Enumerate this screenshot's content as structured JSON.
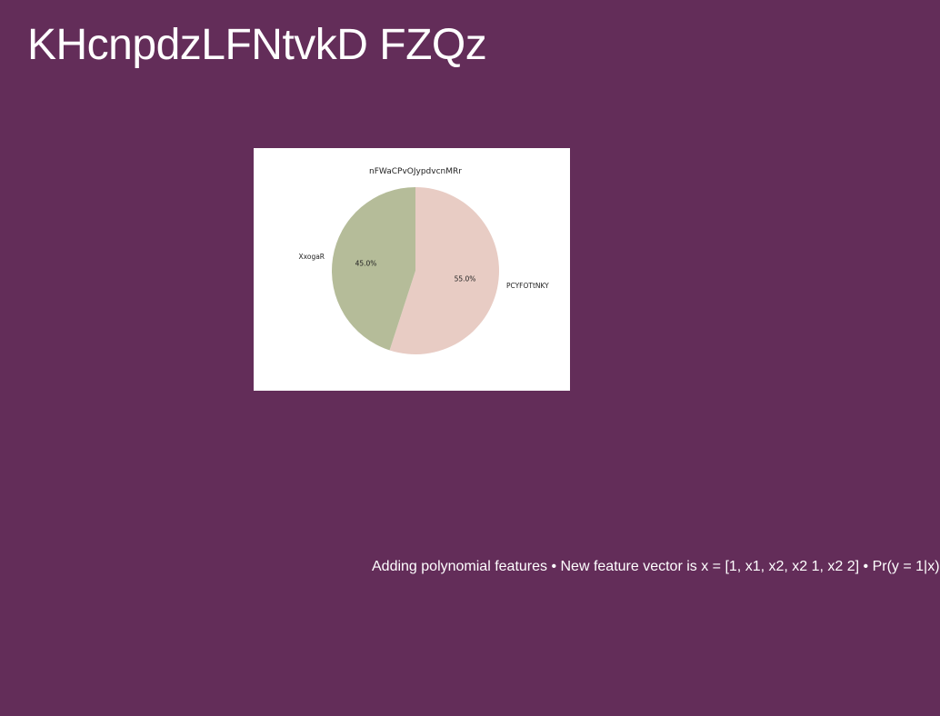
{
  "slide": {
    "title": "KHcnpdzLFNtvkD FZQz",
    "caption": "Adding polynomial features • New feature vector is x = [1, x1, x2, x2 1, x2 2] • Pr(y = 1|x)"
  },
  "colors": {
    "background": "#632d59",
    "panel": "#ffffff"
  },
  "chart_data": {
    "type": "pie",
    "title": "nFWaCPvOJypdvcnMRr",
    "start_angle_deg": 90,
    "direction": "clockwise",
    "slices": [
      {
        "label": "PCYFOTtNKY",
        "value": 55.0,
        "pct_label": "55.0%",
        "color": "#e8ccc4"
      },
      {
        "label": "XxogaR",
        "value": 45.0,
        "pct_label": "45.0%",
        "color": "#b5bc99"
      }
    ]
  }
}
